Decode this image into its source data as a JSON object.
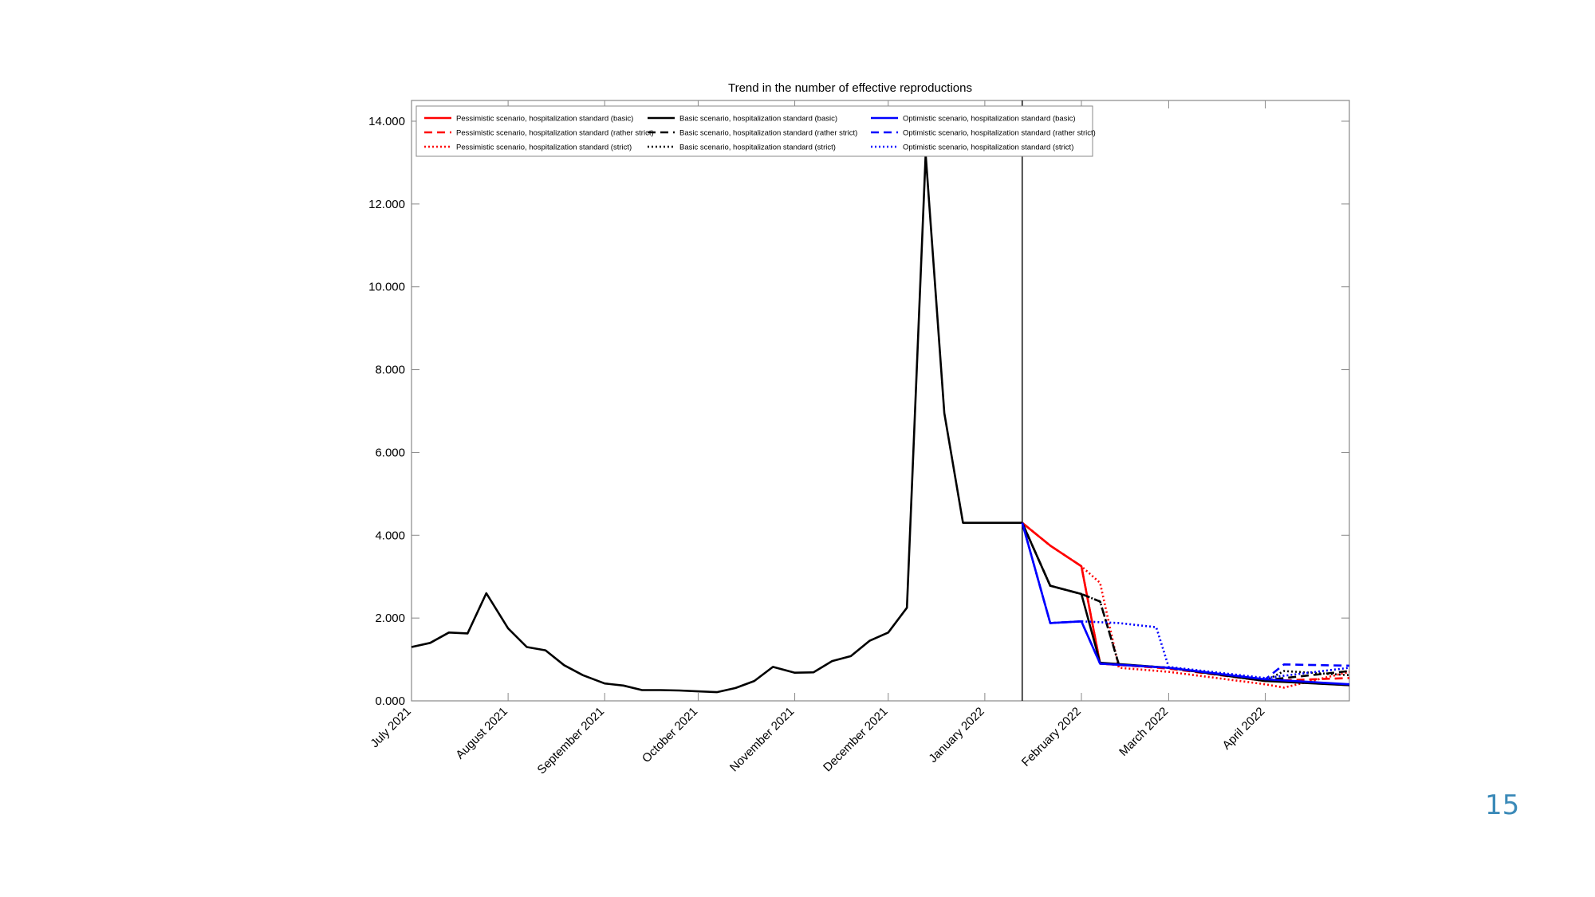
{
  "slide": {
    "page_number": "15"
  },
  "chart_data": {
    "type": "line",
    "title": "Trend in the number of effective reproductions",
    "xlabel": "",
    "ylabel": "",
    "ylim": [
      0,
      14
    ],
    "x_range": [
      "2021-07-01",
      "2022-04-28"
    ],
    "y_ticks": [
      "0.000",
      "2.000",
      "4.000",
      "6.000",
      "8.000",
      "10.000",
      "12.000",
      "14.000"
    ],
    "x_ticks": [
      {
        "label": "July 2021",
        "date": "2021-07-01"
      },
      {
        "label": "August 2021",
        "date": "2021-08-01"
      },
      {
        "label": "September 2021",
        "date": "2021-09-01"
      },
      {
        "label": "October 2021",
        "date": "2021-10-01"
      },
      {
        "label": "November 2021",
        "date": "2021-11-01"
      },
      {
        "label": "December 2021",
        "date": "2021-12-01"
      },
      {
        "label": "January 2022",
        "date": "2022-01-01"
      },
      {
        "label": "February 2022",
        "date": "2022-02-01"
      },
      {
        "label": "March 2022",
        "date": "2022-03-01"
      },
      {
        "label": "April 2022",
        "date": "2022-04-01"
      }
    ],
    "vertical_line_date": "2022-01-13",
    "grid": false,
    "legend_position": "top-left",
    "legend": [
      {
        "name": "Pessimistic scenario, hospitalization standard (basic)",
        "color": "#ff0000",
        "dash": "solid"
      },
      {
        "name": "Basic scenario, hospitalization standard (basic)",
        "color": "#000000",
        "dash": "solid"
      },
      {
        "name": "Optimistic scenario, hospitalization standard (basic)",
        "color": "#0000ff",
        "dash": "solid"
      },
      {
        "name": "Pessimistic scenario, hospitalization standard (rather strict)",
        "color": "#ff0000",
        "dash": "dashed"
      },
      {
        "name": "Basic scenario, hospitalization standard (rather strict)",
        "color": "#000000",
        "dash": "dashed"
      },
      {
        "name": "Optimistic scenario, hospitalization standard (rather strict)",
        "color": "#0000ff",
        "dash": "dashed"
      },
      {
        "name": "Pessimistic scenario, hospitalization standard (strict)",
        "color": "#ff0000",
        "dash": "dotted"
      },
      {
        "name": "Basic scenario, hospitalization standard (strict)",
        "color": "#000000",
        "dash": "dotted"
      },
      {
        "name": "Optimistic scenario, hospitalization standard (strict)",
        "color": "#0000ff",
        "dash": "dotted"
      }
    ],
    "series": [
      {
        "id": "historical",
        "color": "#000000",
        "dash": "solid",
        "x": [
          "2021-07-01",
          "2021-07-07",
          "2021-07-13",
          "2021-07-19",
          "2021-07-25",
          "2021-08-01",
          "2021-08-07",
          "2021-08-13",
          "2021-08-19",
          "2021-08-25",
          "2021-09-01",
          "2021-09-07",
          "2021-09-13",
          "2021-09-19",
          "2021-09-25",
          "2021-10-01",
          "2021-10-07",
          "2021-10-13",
          "2021-10-19",
          "2021-10-25",
          "2021-11-01",
          "2021-11-07",
          "2021-11-13",
          "2021-11-19",
          "2021-11-25",
          "2021-12-01",
          "2021-12-07",
          "2021-12-13",
          "2021-12-19",
          "2021-12-25",
          "2022-01-01",
          "2022-01-07",
          "2022-01-13"
        ],
        "y": [
          1.3,
          1.4,
          1.65,
          1.63,
          2.6,
          1.75,
          1.3,
          1.22,
          0.86,
          0.62,
          0.42,
          0.37,
          0.26,
          0.26,
          0.25,
          0.23,
          0.21,
          0.31,
          0.48,
          0.82,
          0.68,
          0.69,
          0.96,
          1.08,
          1.45,
          1.65,
          2.25,
          13.2,
          6.95,
          4.3,
          4.3,
          4.3,
          4.3
        ]
      },
      {
        "id": "pessimistic-basic",
        "color": "#ff0000",
        "dash": "solid",
        "x": [
          "2022-01-13",
          "2022-01-22",
          "2022-02-01",
          "2022-02-07",
          "2022-03-01",
          "2022-04-01",
          "2022-04-28"
        ],
        "y": [
          4.3,
          3.75,
          3.25,
          0.9,
          0.8,
          0.5,
          0.38
        ]
      },
      {
        "id": "pessimistic-rather-strict",
        "color": "#ff0000",
        "dash": "dashed",
        "x": [
          "2022-01-13",
          "2022-01-22",
          "2022-02-01",
          "2022-02-07",
          "2022-03-01",
          "2022-04-01",
          "2022-04-28"
        ],
        "y": [
          4.3,
          3.75,
          3.25,
          0.9,
          0.78,
          0.48,
          0.55
        ]
      },
      {
        "id": "pessimistic-strict",
        "color": "#ff0000",
        "dash": "dotted",
        "x": [
          "2022-01-13",
          "2022-01-22",
          "2022-02-01",
          "2022-02-07",
          "2022-02-13",
          "2022-03-01",
          "2022-04-01",
          "2022-04-07",
          "2022-04-28"
        ],
        "y": [
          4.3,
          3.75,
          3.25,
          2.85,
          0.8,
          0.7,
          0.4,
          0.32,
          0.7
        ]
      },
      {
        "id": "basic-basic",
        "color": "#000000",
        "dash": "solid",
        "x": [
          "2022-01-13",
          "2022-01-22",
          "2022-02-01",
          "2022-02-07",
          "2022-03-01",
          "2022-04-01",
          "2022-04-28"
        ],
        "y": [
          4.3,
          2.78,
          2.58,
          0.92,
          0.8,
          0.48,
          0.38
        ]
      },
      {
        "id": "basic-rather-strict",
        "color": "#000000",
        "dash": "dashed",
        "x": [
          "2022-01-13",
          "2022-01-22",
          "2022-02-01",
          "2022-02-07",
          "2022-02-13",
          "2022-03-01",
          "2022-04-01",
          "2022-04-28"
        ],
        "y": [
          4.3,
          2.78,
          2.58,
          2.4,
          0.88,
          0.8,
          0.5,
          0.72
        ]
      },
      {
        "id": "basic-strict",
        "color": "#000000",
        "dash": "dotted",
        "x": [
          "2022-01-13",
          "2022-01-22",
          "2022-02-01",
          "2022-02-07",
          "2022-02-13",
          "2022-03-01",
          "2022-04-01",
          "2022-04-07",
          "2022-04-28"
        ],
        "y": [
          4.3,
          2.78,
          2.58,
          2.4,
          0.88,
          0.8,
          0.48,
          0.72,
          0.62
        ]
      },
      {
        "id": "optimistic-basic",
        "color": "#0000ff",
        "dash": "solid",
        "x": [
          "2022-01-13",
          "2022-01-22",
          "2022-02-01",
          "2022-02-07",
          "2022-03-01",
          "2022-04-01",
          "2022-04-28"
        ],
        "y": [
          4.3,
          1.88,
          1.92,
          0.9,
          0.8,
          0.52,
          0.4
        ]
      },
      {
        "id": "optimistic-rather-strict",
        "color": "#0000ff",
        "dash": "dashed",
        "x": [
          "2022-01-13",
          "2022-01-22",
          "2022-02-01",
          "2022-02-07",
          "2022-03-01",
          "2022-04-01",
          "2022-04-07",
          "2022-04-28"
        ],
        "y": [
          4.3,
          1.88,
          1.92,
          0.9,
          0.8,
          0.52,
          0.88,
          0.85
        ]
      },
      {
        "id": "optimistic-strict",
        "color": "#0000ff",
        "dash": "dotted",
        "x": [
          "2022-01-13",
          "2022-01-22",
          "2022-02-01",
          "2022-02-13",
          "2022-02-25",
          "2022-03-01",
          "2022-04-01",
          "2022-04-28"
        ],
        "y": [
          4.3,
          1.88,
          1.92,
          1.88,
          1.78,
          0.82,
          0.55,
          0.8
        ]
      }
    ]
  }
}
